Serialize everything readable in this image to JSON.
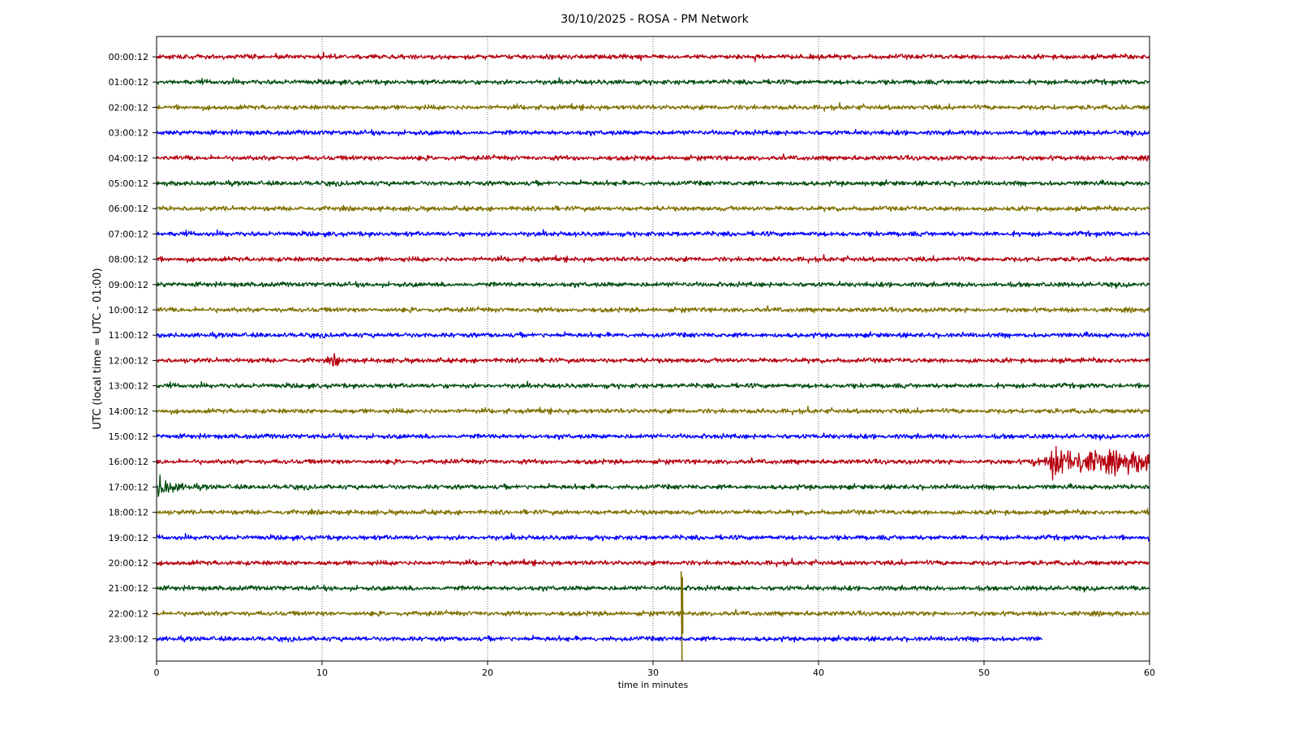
{
  "chart_data": {
    "type": "line",
    "title": "30/10/2025 - ROSA - PM Network",
    "xlabel": "time in minutes",
    "ylabel": "UTC (local time = UTC - 01:00)",
    "xlim": [
      0,
      60
    ],
    "x_ticks": [
      "0",
      "10",
      "20",
      "30",
      "40",
      "50",
      "60"
    ],
    "grid": "vertical dotted lines at 10-minute intervals",
    "row_labels": [
      "00:00:12",
      "01:00:12",
      "02:00:12",
      "03:00:12",
      "04:00:12",
      "05:00:12",
      "06:00:12",
      "07:00:12",
      "08:00:12",
      "09:00:12",
      "10:00:12",
      "11:00:12",
      "12:00:12",
      "13:00:12",
      "14:00:12",
      "15:00:12",
      "16:00:12",
      "17:00:12",
      "18:00:12",
      "19:00:12",
      "20:00:12",
      "21:00:12",
      "22:00:12",
      "23:00:12"
    ],
    "color_cycle": [
      "#b5000f",
      "#004d0f",
      "#7f7000",
      "#0000ff"
    ],
    "trace_end_minutes": [
      60,
      60,
      60,
      60,
      60,
      60,
      60,
      60,
      60,
      60,
      60,
      60,
      60,
      60,
      60,
      60,
      60,
      60,
      60,
      60,
      60,
      60,
      60,
      53.5
    ],
    "events": [
      {
        "row": "12:00:12",
        "minute": 10.8,
        "description": "small local burst"
      },
      {
        "row": "16:00:12",
        "minute": 54.0,
        "description": "seismic event onset, continues past 60 min"
      },
      {
        "row": "17:00:12",
        "minute": 0.0,
        "description": "coda of seismic event, decaying to ~3 min"
      },
      {
        "row": "22:00:12",
        "minute": 31.7,
        "description": "large single spike"
      }
    ]
  }
}
